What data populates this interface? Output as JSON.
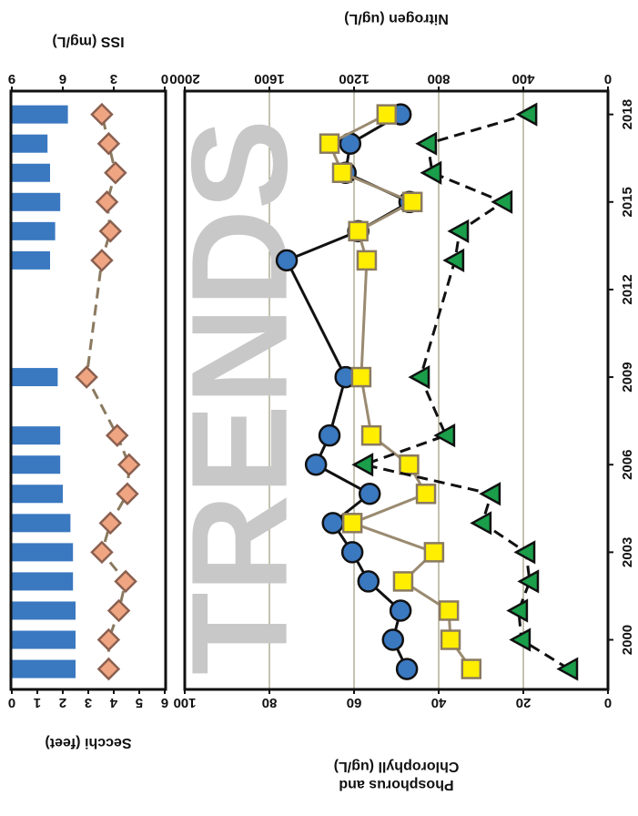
{
  "chart_data": [
    {
      "type": "combo",
      "y_label": "Secchi (feet)",
      "y2_label": "ISS (mg/L)",
      "x": [
        1999,
        2000,
        2001,
        2002,
        2003,
        2004,
        2005,
        2006,
        2007,
        2009,
        2013,
        2014,
        2015,
        2016,
        2017,
        2018
      ],
      "xlim": [
        1998.3,
        2018.8
      ],
      "ylim": [
        0,
        6
      ],
      "y_inverted": true,
      "yticks": [
        0,
        1,
        2,
        3,
        4,
        5,
        6
      ],
      "y2lim": [
        0,
        9
      ],
      "y2ticks": [
        0,
        3,
        6,
        9
      ],
      "series": [
        {
          "type": "bar",
          "color": "#3a78c0",
          "values": [
            2.5,
            2.5,
            2.5,
            2.4,
            2.4,
            2.3,
            2.0,
            1.9,
            1.9,
            1.8,
            1.5,
            1.7,
            1.9,
            1.5,
            1.4,
            2.2
          ]
        },
        {
          "type": "line",
          "axis": "y2",
          "color": "#f0a582",
          "line_color": "#8a7a60",
          "dashed": true,
          "marker": "diamond",
          "values": [
            3.3,
            3.3,
            2.7,
            2.3,
            3.7,
            3.2,
            2.2,
            2.1,
            2.8,
            4.6,
            3.7,
            3.2,
            3.4,
            2.9,
            3.3,
            3.7
          ]
        }
      ]
    },
    {
      "type": "line",
      "y_label": [
        "Phosphorus and",
        "Chlorophyll (ug/L)"
      ],
      "y2_label": "Nitrogen (ug/L)",
      "watermark": "TRENDS",
      "x": [
        1999,
        2000,
        2001,
        2002,
        2003,
        2004,
        2005,
        2006,
        2007,
        2009,
        2013,
        2014,
        2015,
        2016,
        2017,
        2018
      ],
      "xlim": [
        1998.3,
        2018.8
      ],
      "xticks": [
        2000,
        2003,
        2006,
        2009,
        2012,
        2015,
        2018
      ],
      "ylim": [
        0,
        100
      ],
      "yticks": [
        0,
        20,
        40,
        60,
        80,
        100
      ],
      "y2lim": [
        0,
        2000
      ],
      "y2ticks": [
        0,
        400,
        800,
        1200,
        1600,
        2000
      ],
      "grid": true,
      "series": [
        {
          "color": "#3a78c0",
          "line_color": "#111111",
          "dashed": false,
          "marker": "circle",
          "values": [
            47.5,
            50.8,
            49,
            56.6,
            60.4,
            65,
            56.3,
            69,
            65.8,
            62,
            75.9,
            59,
            46.9,
            62,
            60.9,
            49
          ]
        },
        {
          "color": "#ffee00",
          "line_color": "#9a8a70",
          "dashed": false,
          "marker": "square",
          "values": [
            32.3,
            37.2,
            37.6,
            48.4,
            41.1,
            60.4,
            43,
            47,
            55.9,
            58.3,
            57,
            59,
            46.2,
            62.8,
            65.8,
            52.3
          ]
        },
        {
          "axis": "y2",
          "color": "#1a9e4a",
          "line_color": "#111111",
          "dashed": true,
          "marker": "triangle",
          "values": [
            185,
            409,
            422,
            370,
            387,
            594,
            551,
            1153,
            766,
            886,
            723,
            701,
            495,
            830,
            852,
            378
          ]
        }
      ]
    }
  ]
}
